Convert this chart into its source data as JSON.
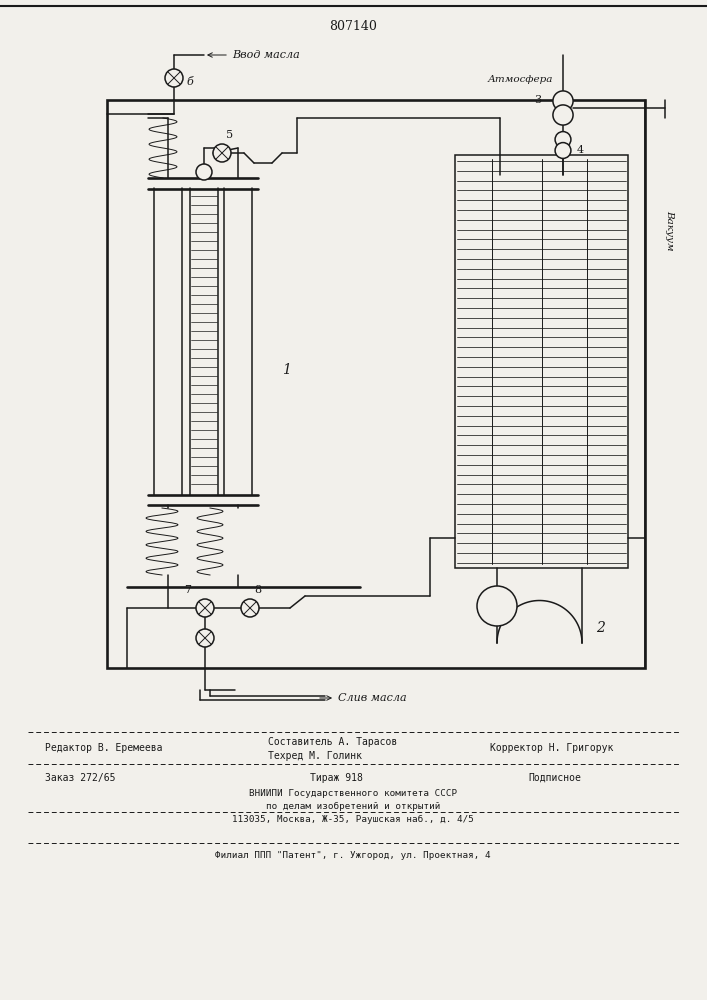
{
  "patent_number": "807140",
  "bg_color": "#f2f0eb",
  "line_color": "#1a1a1a",
  "text_color": "#111111",
  "label_fontsize": 8.0,
  "small_fontsize": 7.0,
  "bottom_line1_left": "Редактор В. Еремеева",
  "bottom_line1_mid_top": "Составитель А. Тарасов",
  "bottom_line1_mid_bot": "Техред М. Голинк",
  "bottom_line1_right": "Корректор Н. Григорук",
  "bottom_line2_left": "Заказ 272/65",
  "bottom_line2_mid": "Тираж 918",
  "bottom_line2_right": "Подписное",
  "bottom_line3": "ВНИИПИ Государственного комитета СССР",
  "bottom_line4": "по делам изобретений и открытий",
  "bottom_line5": "113035, Москва, Ж-35, Раушская наб., д. 4/5",
  "bottom_line6": "Филиал ППП \"Патент\", г. Ужгород, ул. Проектная, 4",
  "label_vvod": "Ввод масла",
  "label_atm": "Атмосфера",
  "label_vac": "Вакуум",
  "label_sliv": "Слив масла"
}
